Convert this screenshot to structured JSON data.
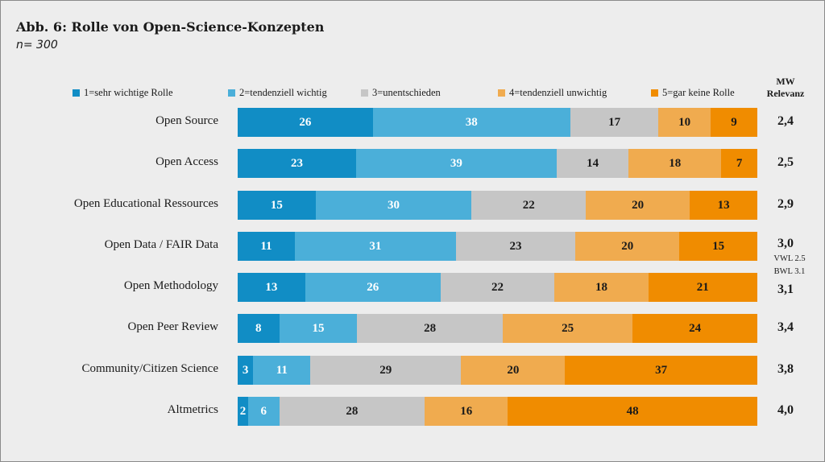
{
  "chart_data": {
    "type": "bar",
    "orientation": "horizontal-stacked-percent",
    "title": "Abb. 6: Rolle von Open-Science-Konzepten",
    "subtitle": "n= 300",
    "legend_position": "top",
    "mw_header": [
      "MW",
      "Relevanz"
    ],
    "categories": [
      "Open Source",
      "Open Access",
      "Open Educational Ressources",
      "Open Data / FAIR Data",
      "Open Methodology",
      "Open Peer Review",
      "Community/Citizen Science",
      "Altmetrics"
    ],
    "series": [
      {
        "name": "1=sehr wichtige Rolle",
        "color": "#118dc5",
        "values": [
          26,
          23,
          15,
          11,
          13,
          8,
          3,
          2
        ]
      },
      {
        "name": "2=tendenziell wichtig",
        "color": "#4bafd9",
        "values": [
          38,
          39,
          30,
          31,
          26,
          15,
          11,
          6
        ]
      },
      {
        "name": "3=unentschieden",
        "color": "#c6c6c6",
        "values": [
          17,
          14,
          22,
          23,
          22,
          28,
          29,
          28
        ]
      },
      {
        "name": "4=tendenziell unwichtig",
        "color": "#f0ab4f",
        "values": [
          10,
          18,
          20,
          20,
          18,
          25,
          20,
          16
        ]
      },
      {
        "name": "5=gar keine Rolle",
        "color": "#f08c00",
        "values": [
          9,
          7,
          13,
          15,
          21,
          24,
          37,
          48
        ]
      }
    ],
    "mw_values": [
      "2,4",
      "2,5",
      "2,9",
      "3,0",
      "3,1",
      "3,4",
      "3,8",
      "4,0"
    ],
    "annotations": [
      "VWL  2.5",
      "BWL  3.1"
    ]
  }
}
